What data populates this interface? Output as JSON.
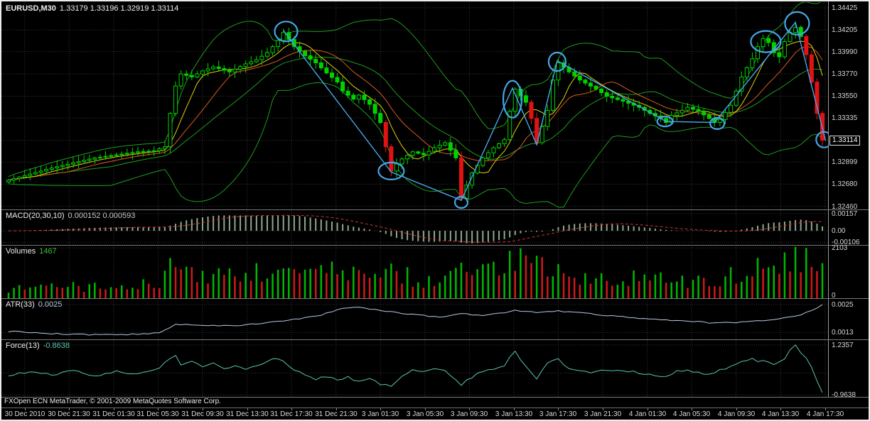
{
  "window": {
    "app_name": "FXOpen ECN MetaTrader"
  },
  "price_panel": {
    "symbol_label": "EURUSD,M30",
    "ohlc_label": "1.33179 1.33196 1.32919 1.33114",
    "current_price": "1.33114"
  },
  "indicators": {
    "macd": {
      "label": "MACD(20,30,10)",
      "values": "0.000152 0.000593"
    },
    "volumes": {
      "label": "Volumes",
      "value": "1467"
    },
    "atr": {
      "label": "ATR(33)",
      "value": "0.0025"
    },
    "force": {
      "label": "Force(13)",
      "value": "-0.8638"
    }
  },
  "footer": {
    "copyright": "FXOpen ECN MetaTrader, © 2001-2009 MetaQuotes Software Corp."
  },
  "chart_data": {
    "type": "candlestick",
    "symbol": "EURUSD",
    "timeframe": "M30",
    "bars": 152,
    "price_axis": {
      "min": 1.3243,
      "max": 1.3448,
      "ticks": [
        "1.34425",
        "1.34205",
        "1.33990",
        "1.33770",
        "1.33550",
        "1.33335",
        "1.33114",
        "1.32899",
        "1.32680",
        "1.32460"
      ],
      "current_tick_index": 6,
      "current_value": 1.33114
    },
    "time_axis": {
      "labels": [
        "30 Dec 2010",
        "30 Dec 21:30",
        "31 Dec 01:30",
        "31 Dec 05:30",
        "31 Dec 09:30",
        "31 Dec 13:30",
        "31 Dec 17:30",
        "31 Dec 21:30",
        "3 Jan 01:30",
        "3 Jan 05:30",
        "3 Jan 09:30",
        "3 Jan 13:30",
        "3 Jan 17:30",
        "3 Jan 21:30",
        "4 Jan 01:30",
        "4 Jan 05:30",
        "4 Jan 09:30",
        "4 Jan 13:30",
        "4 Jan 17:30"
      ],
      "first_bar_index": 3,
      "bars_per_label": 8.25
    },
    "close_anchors": [
      [
        0,
        1.3272
      ],
      [
        4,
        1.3278
      ],
      [
        8,
        1.3284
      ],
      [
        12,
        1.3289
      ],
      [
        16,
        1.3294
      ],
      [
        20,
        1.3297
      ],
      [
        24,
        1.33
      ],
      [
        27,
        1.3301
      ],
      [
        29,
        1.3305
      ],
      [
        30,
        1.3338
      ],
      [
        31,
        1.3365
      ],
      [
        32,
        1.3377
      ],
      [
        34,
        1.3374
      ],
      [
        36,
        1.338
      ],
      [
        38,
        1.3384
      ],
      [
        41,
        1.3379
      ],
      [
        44,
        1.3387
      ],
      [
        46,
        1.3391
      ],
      [
        48,
        1.3398
      ],
      [
        50,
        1.341
      ],
      [
        51,
        1.3418
      ],
      [
        53,
        1.3404
      ],
      [
        55,
        1.3395
      ],
      [
        57,
        1.3388
      ],
      [
        59,
        1.3378
      ],
      [
        61,
        1.3369
      ],
      [
        62,
        1.336
      ],
      [
        64,
        1.3352
      ],
      [
        65,
        1.3356
      ],
      [
        67,
        1.3347
      ],
      [
        69,
        1.3329
      ],
      [
        70,
        1.3305
      ],
      [
        71,
        1.3281
      ],
      [
        72,
        1.3288
      ],
      [
        73,
        1.3293
      ],
      [
        75,
        1.33
      ],
      [
        77,
        1.3297
      ],
      [
        79,
        1.3304
      ],
      [
        81,
        1.3309
      ],
      [
        83,
        1.3294
      ],
      [
        84,
        1.3254
      ],
      [
        85,
        1.3267
      ],
      [
        86,
        1.3279
      ],
      [
        88,
        1.3294
      ],
      [
        90,
        1.3304
      ],
      [
        92,
        1.3312
      ],
      [
        93,
        1.334
      ],
      [
        94,
        1.3362
      ],
      [
        96,
        1.3349
      ],
      [
        97,
        1.3333
      ],
      [
        98,
        1.3309
      ],
      [
        100,
        1.3341
      ],
      [
        101,
        1.3371
      ],
      [
        102,
        1.3388
      ],
      [
        104,
        1.3379
      ],
      [
        106,
        1.3371
      ],
      [
        109,
        1.3362
      ],
      [
        111,
        1.3355
      ],
      [
        114,
        1.335
      ],
      [
        117,
        1.3344
      ],
      [
        119,
        1.3338
      ],
      [
        121,
        1.3333
      ],
      [
        122,
        1.3329
      ],
      [
        123,
        1.3336
      ],
      [
        125,
        1.3341
      ],
      [
        126,
        1.3344
      ],
      [
        128,
        1.334
      ],
      [
        130,
        1.3333
      ],
      [
        131,
        1.3329
      ],
      [
        132,
        1.3332
      ],
      [
        134,
        1.3346
      ],
      [
        135,
        1.336
      ],
      [
        136,
        1.3374
      ],
      [
        138,
        1.3392
      ],
      [
        139,
        1.3404
      ],
      [
        140,
        1.3412
      ],
      [
        141,
        1.3408
      ],
      [
        142,
        1.3398
      ],
      [
        143,
        1.3394
      ],
      [
        144,
        1.3409
      ],
      [
        145,
        1.3418
      ],
      [
        146,
        1.3423
      ],
      [
        147,
        1.3414
      ],
      [
        148,
        1.3396
      ],
      [
        149,
        1.3369
      ],
      [
        150,
        1.3338
      ],
      [
        151,
        1.3311
      ]
    ],
    "overlays": {
      "bollinger_period": 20,
      "ma_fast_period": 6,
      "ma_slow_period": 12
    },
    "annotations": {
      "color": "#45a7e8",
      "zigzag": [
        [
          51,
          1.342
        ],
        [
          71,
          1.328
        ],
        [
          84,
          1.3252
        ],
        [
          93.5,
          1.3363
        ],
        [
          98,
          1.3307
        ],
        [
          101.8,
          1.339
        ],
        [
          122,
          1.333
        ],
        [
          131,
          1.3329
        ],
        [
          146,
          1.3428
        ],
        [
          151.6,
          1.3311
        ]
      ],
      "circles": [
        [
          51.5,
          1.3419,
          16,
          14
        ],
        [
          71,
          1.3281,
          18,
          12
        ],
        [
          84,
          1.325,
          9,
          8
        ],
        [
          93.5,
          1.3352,
          13,
          26
        ],
        [
          101.8,
          1.3389,
          12,
          13
        ],
        [
          121.8,
          1.333,
          11,
          7
        ],
        [
          131.5,
          1.3328,
          10,
          8
        ],
        [
          140.5,
          1.3409,
          21,
          15
        ],
        [
          146.3,
          1.3427,
          17,
          16
        ],
        [
          151.3,
          1.3312,
          11,
          11
        ]
      ]
    },
    "macd": {
      "fast": 20,
      "slow": 30,
      "signal": 10,
      "range": [
        -0.0013,
        0.0019
      ],
      "ticks": [
        {
          "label": "0.00157",
          "v": 0.00157
        },
        {
          "label": "0.00",
          "v": 0
        },
        {
          "label": "-0.00106",
          "v": -0.00106
        }
      ]
    },
    "volumes": {
      "range": [
        0,
        2200
      ],
      "ticks": [
        {
          "label": "2103",
          "v": 2103
        },
        {
          "label": "0",
          "v": 0
        }
      ],
      "anchors": [
        [
          0,
          420
        ],
        [
          5,
          460
        ],
        [
          10,
          520
        ],
        [
          15,
          460
        ],
        [
          20,
          520
        ],
        [
          25,
          560
        ],
        [
          28,
          640
        ],
        [
          30,
          1350
        ],
        [
          32,
          1150
        ],
        [
          35,
          1000
        ],
        [
          38,
          950
        ],
        [
          41,
          900
        ],
        [
          44,
          1000
        ],
        [
          48,
          1150
        ],
        [
          51,
          1250
        ],
        [
          55,
          1000
        ],
        [
          59,
          1100
        ],
        [
          62,
          980
        ],
        [
          65,
          900
        ],
        [
          69,
          1050
        ],
        [
          71,
          1350
        ],
        [
          75,
          820
        ],
        [
          79,
          700
        ],
        [
          83,
          1000
        ],
        [
          84,
          1450
        ],
        [
          86,
          1000
        ],
        [
          89,
          1100
        ],
        [
          92,
          1350
        ],
        [
          94,
          1750
        ],
        [
          97,
          1200
        ],
        [
          100,
          1350
        ],
        [
          102,
          1550
        ],
        [
          105,
          1000
        ],
        [
          109,
          900
        ],
        [
          113,
          820
        ],
        [
          117,
          900
        ],
        [
          121,
          800
        ],
        [
          125,
          700
        ],
        [
          129,
          820
        ],
        [
          131,
          720
        ],
        [
          134,
          900
        ],
        [
          136,
          1100
        ],
        [
          138,
          1300
        ],
        [
          140,
          1250
        ],
        [
          142,
          1050
        ],
        [
          144,
          1450
        ],
        [
          146,
          1800
        ],
        [
          148,
          2103
        ],
        [
          150,
          1900
        ],
        [
          151,
          1467
        ]
      ]
    },
    "atr": {
      "range": [
        0.001,
        0.00275
      ],
      "ticks": [
        {
          "label": "0.0025",
          "v": 0.0025
        },
        {
          "label": "0.0013",
          "v": 0.0013
        }
      ],
      "anchors": [
        [
          0,
          0.00135
        ],
        [
          8,
          0.00125
        ],
        [
          16,
          0.0012
        ],
        [
          24,
          0.00122
        ],
        [
          28,
          0.00128
        ],
        [
          31,
          0.00165
        ],
        [
          36,
          0.0016
        ],
        [
          42,
          0.00158
        ],
        [
          48,
          0.00172
        ],
        [
          54,
          0.0019
        ],
        [
          58,
          0.00205
        ],
        [
          62,
          0.00235
        ],
        [
          64,
          0.0024
        ],
        [
          68,
          0.00228
        ],
        [
          74,
          0.0021
        ],
        [
          80,
          0.00195
        ],
        [
          84,
          0.0021
        ],
        [
          88,
          0.00205
        ],
        [
          92,
          0.00215
        ],
        [
          94,
          0.00225
        ],
        [
          98,
          0.00215
        ],
        [
          102,
          0.00222
        ],
        [
          106,
          0.00215
        ],
        [
          110,
          0.00205
        ],
        [
          114,
          0.00198
        ],
        [
          118,
          0.0019
        ],
        [
          122,
          0.00183
        ],
        [
          126,
          0.0018
        ],
        [
          130,
          0.00172
        ],
        [
          134,
          0.00172
        ],
        [
          138,
          0.00178
        ],
        [
          142,
          0.00185
        ],
        [
          145,
          0.00195
        ],
        [
          147,
          0.00205
        ],
        [
          149,
          0.00225
        ],
        [
          151,
          0.0025
        ]
      ]
    },
    "force": {
      "range": [
        -1.05,
        1.45
      ],
      "ticks": [
        {
          "label": "1.2357",
          "v": 1.2357
        },
        {
          "label": "-0.9638",
          "v": -0.9638
        }
      ],
      "anchors": [
        [
          0,
          -0.08
        ],
        [
          4,
          0.06
        ],
        [
          8,
          -0.07
        ],
        [
          12,
          0.1
        ],
        [
          16,
          -0.12
        ],
        [
          20,
          0.05
        ],
        [
          24,
          -0.05
        ],
        [
          28,
          0.25
        ],
        [
          30,
          0.62
        ],
        [
          31,
          0.78
        ],
        [
          32,
          0.4
        ],
        [
          34,
          0.55
        ],
        [
          36,
          0.28
        ],
        [
          38,
          0.46
        ],
        [
          40,
          0.2
        ],
        [
          42,
          0.34
        ],
        [
          44,
          0.14
        ],
        [
          46,
          0.3
        ],
        [
          48,
          0.52
        ],
        [
          50,
          0.66
        ],
        [
          51,
          0.48
        ],
        [
          53,
          0.15
        ],
        [
          55,
          -0.12
        ],
        [
          57,
          -0.28
        ],
        [
          59,
          -0.15
        ],
        [
          61,
          -0.32
        ],
        [
          63,
          -0.2
        ],
        [
          65,
          -0.36
        ],
        [
          67,
          -0.28
        ],
        [
          69,
          -0.48
        ],
        [
          71,
          -0.56
        ],
        [
          73,
          -0.18
        ],
        [
          75,
          0.12
        ],
        [
          77,
          0.04
        ],
        [
          79,
          0.16
        ],
        [
          81,
          0.08
        ],
        [
          83,
          -0.35
        ],
        [
          84,
          -0.52
        ],
        [
          86,
          -0.18
        ],
        [
          88,
          0.1
        ],
        [
          90,
          0.18
        ],
        [
          92,
          0.32
        ],
        [
          93,
          0.68
        ],
        [
          94,
          0.92
        ],
        [
          96,
          0.28
        ],
        [
          98,
          -0.22
        ],
        [
          100,
          0.42
        ],
        [
          102,
          0.6
        ],
        [
          104,
          0.18
        ],
        [
          106,
          0.1
        ],
        [
          108,
          0.04
        ],
        [
          110,
          0.12
        ],
        [
          112,
          0.05
        ],
        [
          114,
          0.12
        ],
        [
          116,
          0.04
        ],
        [
          118,
          -0.06
        ],
        [
          120,
          -0.12
        ],
        [
          122,
          -0.16
        ],
        [
          124,
          0.06
        ],
        [
          126,
          0.12
        ],
        [
          128,
          0.04
        ],
        [
          130,
          -0.06
        ],
        [
          132,
          0.12
        ],
        [
          134,
          0.3
        ],
        [
          136,
          0.52
        ],
        [
          138,
          0.62
        ],
        [
          139,
          0.5
        ],
        [
          140,
          0.56
        ],
        [
          142,
          0.34
        ],
        [
          144,
          0.62
        ],
        [
          145,
          1.02
        ],
        [
          146,
          1.2357
        ],
        [
          147,
          0.88
        ],
        [
          148,
          0.66
        ],
        [
          149,
          0.25
        ],
        [
          150,
          -0.35
        ],
        [
          151,
          -0.8638
        ]
      ]
    },
    "colors": {
      "bg": "#000000",
      "grid": "#353535",
      "separator": "#7a7a7a",
      "scale_line": "#9a9a9a",
      "candle_up": "#00d200",
      "candle_drop": "#e01212",
      "band": "#1e9c1e",
      "ma_fast": "#e8cf10",
      "ma_slow": "#d95b22",
      "macd_hist": "#8fa88f",
      "macd_signal": "#d23333",
      "vol_up": "#00b800",
      "vol_down": "#cc1a1a",
      "atr_line": "#b7c9df",
      "force_line": "#58c4b0"
    }
  }
}
